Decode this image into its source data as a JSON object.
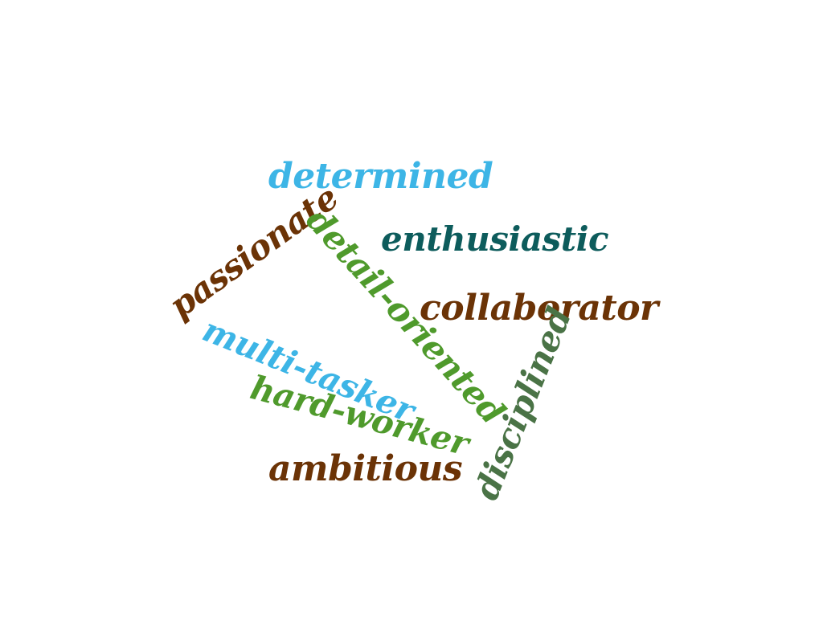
{
  "words": [
    {
      "text": "determined",
      "color": "#3db5e6"
    },
    {
      "text": "enthusiastic",
      "color": "#0d5c5c"
    },
    {
      "text": "passionate",
      "color": "#6b3306"
    },
    {
      "text": "detail-oriented",
      "color": "#4f9a2c"
    },
    {
      "text": "collaborator",
      "color": "#6b3306"
    },
    {
      "text": "multi-tasker",
      "color": "#3db5e6"
    },
    {
      "text": "hard-worker",
      "color": "#4f9a2c"
    },
    {
      "text": "ambitious",
      "color": "#6b3306"
    },
    {
      "text": "disciplined",
      "color": "#4a7346"
    }
  ]
}
